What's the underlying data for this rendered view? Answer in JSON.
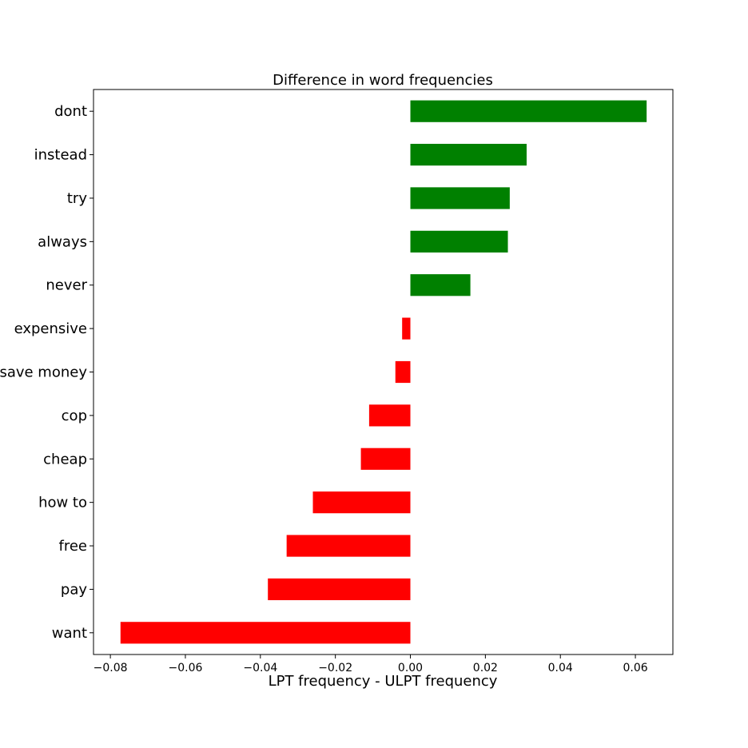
{
  "chart_data": {
    "type": "bar",
    "orientation": "horizontal",
    "title": "Difference in word frequencies",
    "xlabel": "LPT frequency - ULPT frequency",
    "ylabel": "",
    "categories": [
      "dont",
      "instead",
      "try",
      "always",
      "never",
      "expensive",
      "save money",
      "cop",
      "cheap",
      "how to",
      "free",
      "pay",
      "want"
    ],
    "values": [
      0.063,
      0.031,
      0.0265,
      0.026,
      0.016,
      -0.0022,
      -0.004,
      -0.011,
      -0.0132,
      -0.026,
      -0.033,
      -0.038,
      -0.0773
    ],
    "xlim": [
      -0.0845,
      0.07
    ],
    "xticks": [
      -0.08,
      -0.06,
      -0.04,
      -0.02,
      0.0,
      0.02,
      0.04,
      0.06
    ],
    "xtick_labels": [
      "−0.08",
      "−0.06",
      "−0.04",
      "−0.02",
      "0.00",
      "0.02",
      "0.04",
      "0.06"
    ],
    "grid": false,
    "legend": false,
    "colors": {
      "positive": "#008000",
      "negative": "#ff0000",
      "axes": "#000000"
    }
  }
}
